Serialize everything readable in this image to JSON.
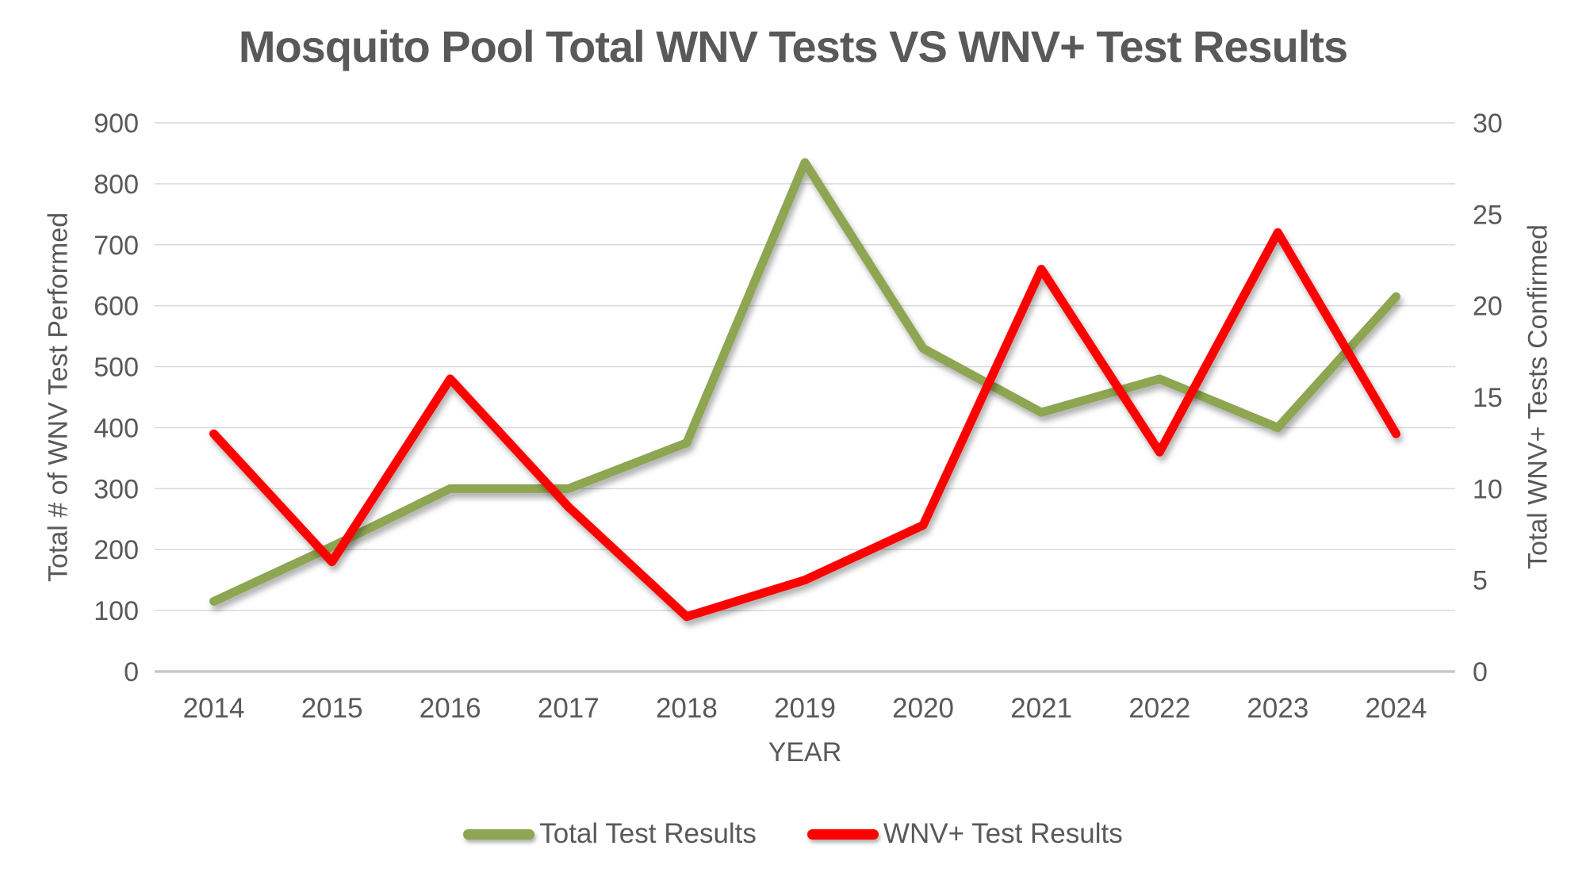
{
  "title": "Mosquito Pool Total WNV Tests VS WNV+ Test Results",
  "chart_data": {
    "type": "line",
    "title": "Mosquito Pool Total WNV Tests VS WNV+ Test Results",
    "categories": [
      "2014",
      "2015",
      "2016",
      "2017",
      "2018",
      "2019",
      "2020",
      "2021",
      "2022",
      "2023",
      "2024"
    ],
    "series": [
      {
        "name": "Total Test Results",
        "axis": "left",
        "color": "#8EA551",
        "values": [
          115,
          205,
          300,
          300,
          375,
          835,
          530,
          425,
          480,
          400,
          615
        ]
      },
      {
        "name": "WNV+ Test Results",
        "axis": "right",
        "color": "#FF0000",
        "values": [
          13,
          6,
          16,
          9,
          3,
          5,
          8,
          22,
          12,
          24,
          13
        ]
      }
    ],
    "xlabel": "YEAR",
    "ylabel_left": "Total # of WNV Test Performed",
    "ylabel_right": "Total WNV+ Tests Confirmed",
    "ylim_left": [
      0,
      900
    ],
    "yticks_left": [
      0,
      100,
      200,
      300,
      400,
      500,
      600,
      700,
      800,
      900
    ],
    "ylim_right": [
      0,
      30
    ],
    "yticks_right": [
      0,
      5,
      10,
      15,
      20,
      25,
      30
    ],
    "grid": true,
    "legend_position": "bottom",
    "gridline_color": "#D9D9D9",
    "axisline_color": "#C8C8C8",
    "text_color": "#595959"
  }
}
